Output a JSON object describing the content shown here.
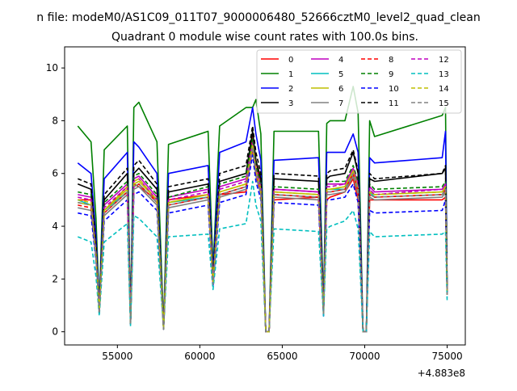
{
  "chart_data": {
    "type": "line",
    "suptitle": "n file: modeM0/AS1C09_011T07_9000006480_52666cztM0_level2_quad_clean",
    "title": "Quadrant 0 module wise count rates with 100.0s bins.",
    "xlabel": "",
    "ylabel": "",
    "x_offset_label": "+4.883e8",
    "xlim": [
      51800,
      76100
    ],
    "ylim": [
      -0.5,
      10.8
    ],
    "xticks": [
      55000,
      60000,
      65000,
      70000,
      75000
    ],
    "xtick_labels": [
      "55000",
      "60000",
      "65000",
      "70000",
      "75000"
    ],
    "yticks": [
      0,
      2,
      4,
      6,
      8,
      10
    ],
    "ytick_labels": [
      "0",
      "2",
      "4",
      "6",
      "8",
      "10"
    ],
    "grid": false,
    "legend_position": "top-right",
    "legend_ncol": 4,
    "x": [
      52600,
      53400,
      53700,
      53900,
      54200,
      55600,
      55800,
      56000,
      56300,
      57400,
      57800,
      58100,
      60500,
      60800,
      61200,
      62800,
      63200,
      63400,
      63700,
      64000,
      64200,
      64500,
      67200,
      67500,
      67700,
      67900,
      68800,
      69300,
      69600,
      69900,
      70100,
      70300,
      70600,
      74700,
      74900,
      75000
    ],
    "series": [
      {
        "name": "0",
        "color": "#ff0000",
        "dash": "solid",
        "values": [
          5.0,
          5.0,
          3.0,
          0.8,
          4.6,
          5.5,
          0.3,
          5.6,
          5.5,
          5.0,
          0.1,
          5.0,
          5.2,
          2.0,
          5.2,
          5.3,
          7.5,
          6.5,
          5.6,
          0.0,
          0.0,
          5.0,
          5.1,
          0.7,
          5.0,
          5.1,
          5.3,
          5.8,
          5.0,
          0.0,
          0.0,
          5.0,
          5.0,
          5.0,
          5.1,
          1.5
        ]
      },
      {
        "name": "1",
        "color": "#008000",
        "dash": "solid",
        "values": [
          7.8,
          7.2,
          4.3,
          1.0,
          6.9,
          7.8,
          0.4,
          8.5,
          8.7,
          7.2,
          0.2,
          7.1,
          7.6,
          2.4,
          7.8,
          8.5,
          8.5,
          8.8,
          7.5,
          0.0,
          0.0,
          7.6,
          7.6,
          1.0,
          7.9,
          8.0,
          8.0,
          9.3,
          8.3,
          0.0,
          0.0,
          8.0,
          7.4,
          8.2,
          8.5,
          1.8
        ]
      },
      {
        "name": "2",
        "color": "#0000ff",
        "dash": "solid",
        "values": [
          6.4,
          6.0,
          3.6,
          0.9,
          5.8,
          6.8,
          0.3,
          7.2,
          7.0,
          6.0,
          0.1,
          6.0,
          6.3,
          2.2,
          6.8,
          7.2,
          8.5,
          7.5,
          6.5,
          0.0,
          0.0,
          6.5,
          6.6,
          0.8,
          6.8,
          6.8,
          6.8,
          7.5,
          6.8,
          0.0,
          0.0,
          6.6,
          6.4,
          6.6,
          7.6,
          1.6
        ]
      },
      {
        "name": "3",
        "color": "#000000",
        "dash": "solid",
        "values": [
          5.6,
          5.4,
          3.2,
          0.8,
          5.0,
          6.0,
          0.3,
          6.0,
          6.2,
          5.4,
          0.1,
          5.3,
          5.6,
          2.0,
          5.7,
          6.0,
          7.6,
          6.5,
          5.8,
          0.0,
          0.0,
          5.8,
          5.7,
          0.8,
          5.8,
          5.9,
          6.0,
          6.8,
          6.0,
          0.0,
          0.0,
          5.8,
          5.7,
          6.0,
          6.2,
          1.5
        ]
      },
      {
        "name": "4",
        "color": "#bf00bf",
        "dash": "solid",
        "values": [
          5.2,
          5.1,
          3.0,
          0.8,
          4.8,
          5.6,
          0.3,
          5.8,
          5.9,
          5.1,
          0.1,
          5.1,
          5.4,
          2.0,
          5.5,
          5.8,
          7.2,
          6.2,
          5.6,
          0.0,
          0.0,
          5.4,
          5.3,
          0.7,
          5.6,
          5.6,
          5.6,
          6.2,
          5.6,
          0.0,
          0.0,
          5.5,
          5.3,
          5.4,
          5.6,
          1.5
        ]
      },
      {
        "name": "5",
        "color": "#00bfbf",
        "dash": "solid",
        "values": [
          5.0,
          4.8,
          2.9,
          0.8,
          4.6,
          5.3,
          0.3,
          5.5,
          5.6,
          4.9,
          0.1,
          4.9,
          5.1,
          1.9,
          5.2,
          5.5,
          7.0,
          6.0,
          5.4,
          0.0,
          0.0,
          5.2,
          5.1,
          0.7,
          5.4,
          5.4,
          5.4,
          6.0,
          5.3,
          0.0,
          0.0,
          5.3,
          5.1,
          5.2,
          5.4,
          1.4
        ]
      },
      {
        "name": "6",
        "color": "#bfbf00",
        "dash": "solid",
        "values": [
          4.9,
          4.8,
          2.9,
          0.8,
          4.6,
          5.4,
          0.3,
          5.6,
          5.7,
          5.0,
          0.1,
          4.9,
          5.2,
          1.9,
          5.3,
          5.6,
          7.1,
          6.1,
          5.4,
          0.0,
          0.0,
          5.3,
          5.2,
          0.7,
          5.4,
          5.4,
          5.5,
          6.1,
          5.4,
          0.0,
          0.0,
          5.3,
          5.2,
          5.3,
          5.5,
          1.4
        ]
      },
      {
        "name": "7",
        "color": "#808080",
        "dash": "solid",
        "values": [
          4.7,
          4.6,
          2.8,
          0.7,
          4.4,
          5.2,
          0.3,
          5.4,
          5.5,
          4.8,
          0.1,
          4.7,
          5.0,
          1.8,
          5.1,
          5.4,
          6.9,
          5.9,
          5.2,
          0.0,
          0.0,
          5.1,
          5.0,
          0.7,
          5.2,
          5.2,
          5.3,
          5.9,
          5.2,
          0.0,
          0.0,
          5.1,
          5.0,
          5.1,
          5.3,
          1.4
        ]
      },
      {
        "name": "8",
        "color": "#ff0000",
        "dash": "dashed",
        "values": [
          4.8,
          4.7,
          2.8,
          0.7,
          4.5,
          5.3,
          0.3,
          5.5,
          5.6,
          4.9,
          0.1,
          4.8,
          5.1,
          1.8,
          5.2,
          5.5,
          7.0,
          6.0,
          5.3,
          0.0,
          0.0,
          5.2,
          5.1,
          0.7,
          5.3,
          5.3,
          5.4,
          6.0,
          5.3,
          0.0,
          0.0,
          5.2,
          5.1,
          5.2,
          5.4,
          1.4
        ]
      },
      {
        "name": "9",
        "color": "#008000",
        "dash": "dashed",
        "values": [
          5.3,
          5.2,
          3.1,
          0.8,
          4.9,
          5.7,
          0.3,
          5.9,
          6.0,
          5.2,
          0.1,
          5.1,
          5.5,
          2.0,
          5.6,
          5.9,
          7.3,
          6.3,
          5.6,
          0.0,
          0.0,
          5.5,
          5.4,
          0.7,
          5.6,
          5.7,
          5.7,
          6.3,
          5.7,
          0.0,
          0.0,
          5.6,
          5.4,
          5.5,
          5.7,
          1.5
        ]
      },
      {
        "name": "10",
        "color": "#0000ff",
        "dash": "dashed",
        "values": [
          4.5,
          4.4,
          2.7,
          0.7,
          4.2,
          5.0,
          0.3,
          5.2,
          5.3,
          4.6,
          0.1,
          4.5,
          4.8,
          1.7,
          4.9,
          5.2,
          6.7,
          5.7,
          5.0,
          0.0,
          0.0,
          4.9,
          4.8,
          0.6,
          5.0,
          5.0,
          5.1,
          5.6,
          4.9,
          0.0,
          0.0,
          4.6,
          4.5,
          4.6,
          5.0,
          1.3
        ]
      },
      {
        "name": "11",
        "color": "#000000",
        "dash": "dashed",
        "values": [
          5.8,
          5.6,
          3.3,
          0.8,
          5.2,
          6.2,
          0.3,
          6.3,
          6.5,
          5.6,
          0.1,
          5.5,
          5.8,
          2.1,
          6.0,
          6.3,
          7.8,
          6.8,
          6.0,
          0.0,
          0.0,
          6.0,
          5.9,
          0.8,
          6.0,
          6.1,
          6.2,
          6.9,
          6.1,
          0.0,
          0.0,
          6.0,
          5.8,
          6.0,
          6.3,
          1.6
        ]
      },
      {
        "name": "12",
        "color": "#bf00bf",
        "dash": "dashed",
        "values": [
          5.1,
          5.0,
          3.0,
          0.8,
          4.7,
          5.5,
          0.3,
          5.7,
          5.8,
          5.0,
          0.1,
          5.0,
          5.3,
          1.9,
          5.4,
          5.7,
          7.1,
          6.1,
          5.5,
          0.0,
          0.0,
          5.4,
          5.3,
          0.7,
          5.5,
          5.5,
          5.6,
          6.2,
          5.5,
          0.0,
          0.0,
          5.4,
          5.2,
          5.4,
          5.6,
          1.4
        ]
      },
      {
        "name": "13",
        "color": "#00bfbf",
        "dash": "dashed",
        "values": [
          3.6,
          3.4,
          2.1,
          0.6,
          3.4,
          4.1,
          0.2,
          4.4,
          4.3,
          3.6,
          0.1,
          3.6,
          3.7,
          1.6,
          3.9,
          4.1,
          5.7,
          4.8,
          4.2,
          0.0,
          0.0,
          3.9,
          3.8,
          0.6,
          3.9,
          4.0,
          4.2,
          4.6,
          3.9,
          0.0,
          0.0,
          3.8,
          3.6,
          3.7,
          3.8,
          1.2
        ]
      },
      {
        "name": "14",
        "color": "#bfbf00",
        "dash": "dashed",
        "values": [
          5.0,
          4.9,
          2.9,
          0.8,
          4.6,
          5.5,
          0.3,
          5.7,
          5.8,
          5.0,
          0.1,
          4.9,
          5.2,
          1.9,
          5.3,
          5.6,
          7.1,
          6.1,
          5.4,
          0.0,
          0.0,
          5.3,
          5.2,
          0.7,
          5.4,
          5.4,
          5.5,
          6.1,
          5.4,
          0.0,
          0.0,
          5.3,
          5.2,
          5.3,
          5.5,
          1.4
        ]
      },
      {
        "name": "15",
        "color": "#808080",
        "dash": "dashed",
        "values": [
          4.9,
          4.8,
          2.9,
          0.7,
          4.5,
          5.3,
          0.3,
          5.5,
          5.6,
          4.9,
          0.1,
          4.8,
          5.1,
          1.8,
          5.2,
          5.5,
          7.0,
          6.0,
          5.3,
          0.0,
          0.0,
          5.2,
          5.1,
          0.7,
          5.3,
          5.3,
          5.4,
          6.0,
          5.3,
          0.0,
          0.0,
          5.2,
          5.1,
          5.2,
          5.4,
          1.4
        ]
      }
    ]
  }
}
